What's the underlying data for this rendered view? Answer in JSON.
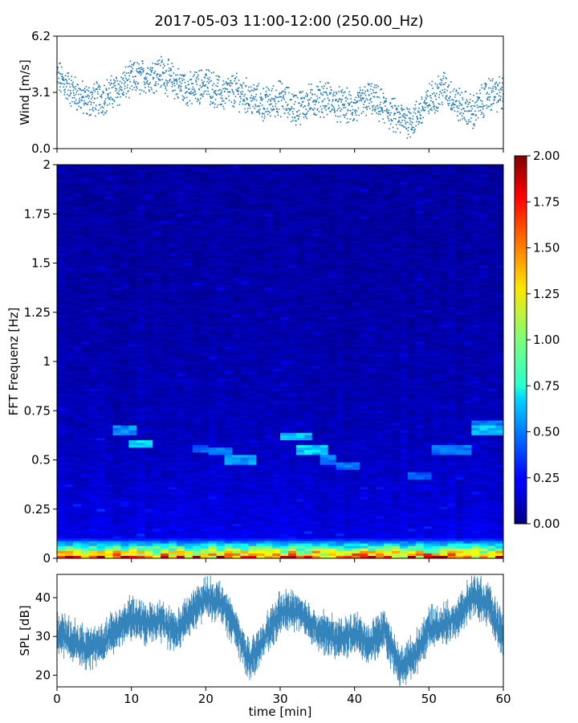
{
  "figure": {
    "title": "2017-05-03 11:00-12:00 (250.00_Hz)"
  },
  "chart_data": [
    {
      "name": "wind",
      "type": "scatter",
      "title": "",
      "xlabel": "",
      "ylabel": "Wind [m/s]",
      "xlim": [
        0,
        60
      ],
      "ylim": [
        0,
        6.2
      ],
      "yticks": [
        0.0,
        3.1,
        6.2
      ],
      "ytick_labels": [
        "0.0",
        "3.1",
        "6.2"
      ],
      "color": "#1f77b4",
      "series": [
        {
          "name": "wind speed",
          "x": [
            0,
            2,
            4,
            6,
            8,
            10,
            12,
            14,
            16,
            18,
            20,
            22,
            24,
            26,
            28,
            30,
            32,
            34,
            36,
            38,
            40,
            42,
            44,
            46,
            48,
            50,
            52,
            54,
            56,
            58,
            60
          ],
          "y": [
            4.0,
            3.2,
            2.6,
            2.8,
            3.2,
            3.8,
            4.0,
            4.2,
            3.6,
            3.2,
            3.6,
            3.0,
            3.2,
            2.8,
            2.4,
            2.8,
            2.2,
            2.6,
            2.8,
            2.4,
            2.2,
            2.8,
            2.2,
            1.6,
            1.6,
            2.6,
            3.4,
            2.4,
            2.0,
            3.0,
            3.0
          ]
        }
      ]
    },
    {
      "name": "spectrogram",
      "type": "heatmap",
      "title": "",
      "xlabel": "",
      "ylabel": "FFT Frequenz [Hz]",
      "xlim": [
        0,
        60
      ],
      "ylim": [
        0,
        2
      ],
      "yticks": [
        0,
        0.25,
        0.5,
        0.75,
        1,
        1.25,
        1.5,
        1.75,
        2
      ],
      "ytick_labels": [
        "0",
        "0.25",
        "0.5",
        "0.75",
        "1",
        "1.25",
        "1.5",
        "1.75",
        "2"
      ],
      "colormap": "jet",
      "vmin": 0.0,
      "vmax": 2.0,
      "colorbar_ticks": [
        "0.00",
        "0.25",
        "0.50",
        "0.75",
        "1.00",
        "1.25",
        "1.50",
        "1.75",
        "2.00"
      ],
      "high_energy_band_hz": [
        0,
        0.1
      ],
      "features": [
        {
          "t": [
            8,
            10.5
          ],
          "f": 0.65,
          "level": 0.55
        },
        {
          "t": [
            9.5,
            12.5
          ],
          "f": 0.58,
          "level": 0.7
        },
        {
          "t": [
            18,
            20
          ],
          "f": 0.56,
          "level": 0.45
        },
        {
          "t": [
            20,
            24
          ],
          "f": 0.54,
          "level": 0.55
        },
        {
          "t": [
            23,
            27
          ],
          "f": 0.5,
          "level": 0.6
        },
        {
          "t": [
            30,
            34
          ],
          "f": 0.62,
          "level": 0.65
        },
        {
          "t": [
            32,
            36
          ],
          "f": 0.55,
          "level": 0.7
        },
        {
          "t": [
            35,
            38
          ],
          "f": 0.5,
          "level": 0.5
        },
        {
          "t": [
            38,
            41
          ],
          "f": 0.47,
          "level": 0.5
        },
        {
          "t": [
            47,
            50
          ],
          "f": 0.42,
          "level": 0.45
        },
        {
          "t": [
            50,
            56
          ],
          "f": 0.55,
          "level": 0.5
        },
        {
          "t": [
            56,
            60
          ],
          "f": 0.65,
          "level": 0.65
        },
        {
          "t": [
            56,
            60
          ],
          "f": 0.68,
          "level": 0.5
        }
      ]
    },
    {
      "name": "spl",
      "type": "area",
      "title": "",
      "xlabel": "time [min]",
      "ylabel": "SPL [dB]",
      "xlim": [
        0,
        60
      ],
      "ylim": [
        17,
        46
      ],
      "yticks": [
        20,
        30,
        40
      ],
      "ytick_labels": [
        "20",
        "30",
        "40"
      ],
      "xticks": [
        0,
        10,
        20,
        30,
        40,
        50,
        60
      ],
      "xtick_labels": [
        "0",
        "10",
        "20",
        "30",
        "40",
        "50",
        "60"
      ],
      "color": "#1f77b4",
      "series": [
        {
          "name": "SPL",
          "x": [
            0,
            2,
            4,
            6,
            8,
            10,
            12,
            14,
            16,
            18,
            20,
            22,
            24,
            26,
            28,
            30,
            32,
            34,
            36,
            38,
            40,
            42,
            44,
            46,
            48,
            50,
            52,
            54,
            56,
            58,
            60
          ],
          "y": [
            31,
            29,
            27,
            28,
            32,
            35,
            33,
            34,
            31,
            36,
            40,
            39,
            32,
            23,
            30,
            36,
            37,
            33,
            31,
            29,
            31,
            28,
            32,
            22,
            25,
            32,
            33,
            35,
            41,
            38,
            30
          ],
          "spread": 3.5
        }
      ]
    }
  ]
}
